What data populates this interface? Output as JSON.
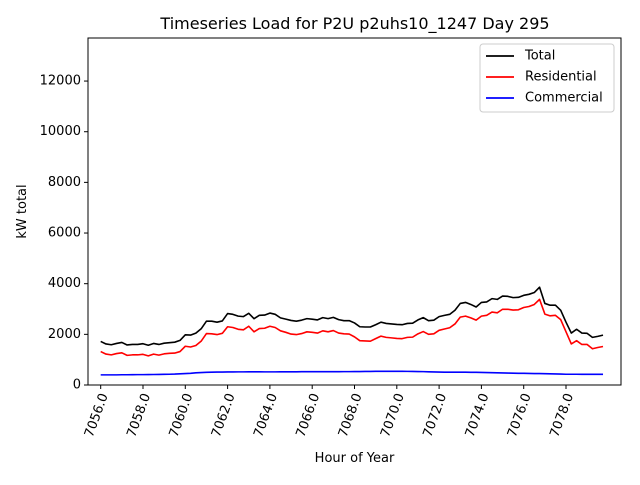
{
  "chart_data": {
    "type": "line",
    "title": "Timeseries Load for P2U p2uhs10_1247  Day 295",
    "xlabel": "Hour of Year",
    "ylabel": "kW total",
    "xlim": [
      7055.4,
      7080.6
    ],
    "ylim": [
      0,
      13700
    ],
    "x_ticks": [
      7056,
      7058,
      7060,
      7062,
      7064,
      7066,
      7068,
      7070,
      7072,
      7074,
      7076,
      7078
    ],
    "x_tick_labels": [
      "7056.0",
      "7058.0",
      "7060.0",
      "7062.0",
      "7064.0",
      "7066.0",
      "7068.0",
      "7070.0",
      "7072.0",
      "7074.0",
      "7076.0",
      "7078.0"
    ],
    "y_ticks": [
      0,
      2000,
      4000,
      6000,
      8000,
      10000,
      12000
    ],
    "y_tick_labels": [
      "0",
      "2000",
      "4000",
      "6000",
      "8000",
      "10000",
      "12000"
    ],
    "grid": false,
    "legend_position": "top-right",
    "x": [
      7056.0,
      7056.25,
      7056.5,
      7056.75,
      7057.0,
      7057.25,
      7057.5,
      7057.75,
      7058.0,
      7058.25,
      7058.5,
      7058.75,
      7059.0,
      7059.25,
      7059.5,
      7059.75,
      7060.0,
      7060.25,
      7060.5,
      7060.75,
      7061.0,
      7061.25,
      7061.5,
      7061.75,
      7062.0,
      7062.25,
      7062.5,
      7062.75,
      7063.0,
      7063.25,
      7063.5,
      7063.75,
      7064.0,
      7064.25,
      7064.5,
      7064.75,
      7065.0,
      7065.25,
      7065.5,
      7065.75,
      7066.0,
      7066.25,
      7066.5,
      7066.75,
      7067.0,
      7067.25,
      7067.5,
      7067.75,
      7068.0,
      7068.25,
      7068.5,
      7068.75,
      7069.0,
      7069.25,
      7069.5,
      7069.75,
      7070.0,
      7070.25,
      7070.5,
      7070.75,
      7071.0,
      7071.25,
      7071.5,
      7071.75,
      7072.0,
      7072.25,
      7072.5,
      7072.75,
      7073.0,
      7073.25,
      7073.5,
      7073.75,
      7074.0,
      7074.25,
      7074.5,
      7074.75,
      7075.0,
      7075.25,
      7075.5,
      7075.75,
      7076.0,
      7076.25,
      7076.5,
      7076.75,
      7077.0,
      7077.25,
      7077.5,
      7077.75,
      7078.0,
      7078.25,
      7078.5,
      7078.75,
      7079.0,
      7079.25,
      7079.5,
      7079.75
    ],
    "series": [
      {
        "name": "Total",
        "color": "#000000",
        "values": [
          1720,
          1620,
          1590,
          1640,
          1680,
          1580,
          1600,
          1600,
          1630,
          1570,
          1640,
          1600,
          1650,
          1670,
          1690,
          1760,
          1980,
          1970,
          2050,
          2220,
          2520,
          2520,
          2480,
          2530,
          2820,
          2790,
          2720,
          2700,
          2830,
          2620,
          2750,
          2760,
          2840,
          2790,
          2650,
          2600,
          2550,
          2520,
          2560,
          2620,
          2600,
          2570,
          2660,
          2620,
          2670,
          2580,
          2540,
          2540,
          2450,
          2300,
          2290,
          2290,
          2380,
          2480,
          2430,
          2410,
          2390,
          2380,
          2430,
          2440,
          2570,
          2660,
          2540,
          2560,
          2700,
          2750,
          2790,
          2950,
          3220,
          3260,
          3180,
          3080,
          3260,
          3280,
          3410,
          3380,
          3510,
          3500,
          3450,
          3460,
          3540,
          3580,
          3650,
          3860,
          3220,
          3150,
          3150,
          2950,
          2480,
          2050,
          2200,
          2050,
          2040,
          1880,
          1920,
          1970
        ]
      },
      {
        "name": "Residential",
        "color": "#ff0000",
        "values": [
          1320,
          1220,
          1190,
          1240,
          1270,
          1170,
          1190,
          1190,
          1210,
          1150,
          1220,
          1180,
          1230,
          1250,
          1260,
          1320,
          1530,
          1500,
          1560,
          1730,
          2030,
          2020,
          1990,
          2040,
          2300,
          2270,
          2200,
          2180,
          2320,
          2100,
          2230,
          2240,
          2320,
          2270,
          2140,
          2080,
          2010,
          1990,
          2030,
          2100,
          2080,
          2050,
          2140,
          2100,
          2150,
          2050,
          2020,
          2010,
          1900,
          1750,
          1740,
          1730,
          1830,
          1930,
          1880,
          1860,
          1840,
          1830,
          1880,
          1890,
          2020,
          2110,
          2000,
          2020,
          2160,
          2210,
          2260,
          2410,
          2680,
          2720,
          2650,
          2560,
          2720,
          2750,
          2880,
          2850,
          2990,
          2990,
          2960,
          2970,
          3060,
          3100,
          3180,
          3380,
          2800,
          2730,
          2750,
          2580,
          2100,
          1620,
          1750,
          1600,
          1600,
          1430,
          1480,
          1520
        ]
      },
      {
        "name": "Commercial",
        "color": "#0000ff",
        "values": [
          400,
          400,
          400,
          400,
          405,
          405,
          408,
          410,
          410,
          412,
          415,
          418,
          420,
          425,
          430,
          440,
          450,
          460,
          480,
          490,
          500,
          505,
          510,
          512,
          515,
          515,
          518,
          518,
          520,
          520,
          520,
          518,
          518,
          518,
          520,
          520,
          522,
          522,
          525,
          525,
          525,
          525,
          525,
          525,
          525,
          525,
          528,
          528,
          530,
          530,
          535,
          535,
          540,
          540,
          540,
          540,
          540,
          540,
          538,
          535,
          532,
          528,
          522,
          515,
          510,
          505,
          505,
          505,
          505,
          505,
          500,
          500,
          495,
          490,
          485,
          480,
          475,
          470,
          465,
          460,
          460,
          455,
          452,
          450,
          445,
          440,
          435,
          430,
          425,
          425,
          425,
          422,
          420,
          420,
          420,
          420
        ]
      }
    ]
  }
}
